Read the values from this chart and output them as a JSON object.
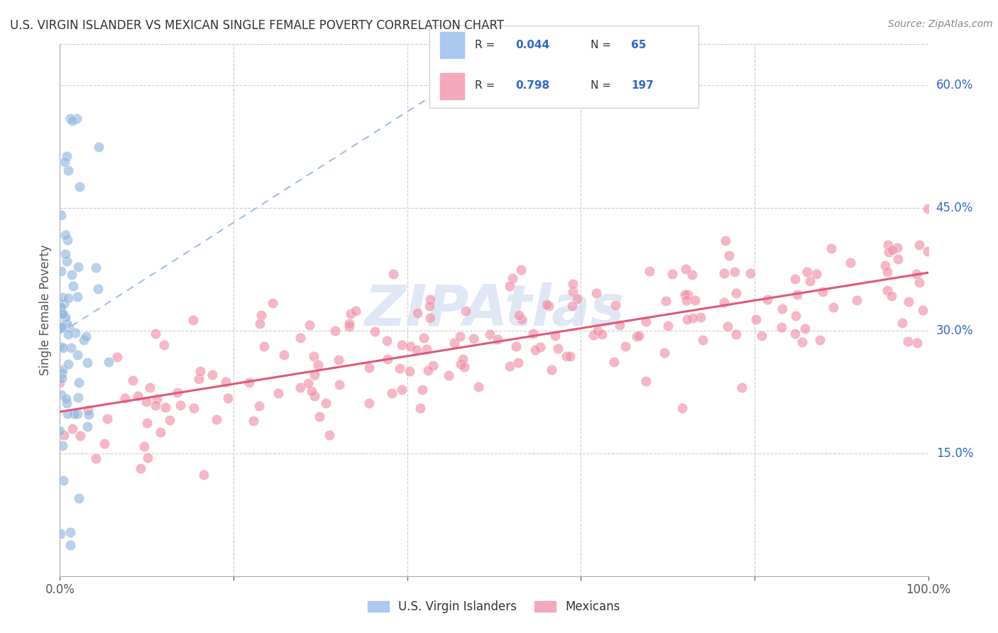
{
  "title": "U.S. VIRGIN ISLANDER VS MEXICAN SINGLE FEMALE POVERTY CORRELATION CHART",
  "source": "Source: ZipAtlas.com",
  "ylabel": "Single Female Poverty",
  "xlim": [
    0,
    1.0
  ],
  "ylim": [
    0,
    0.65
  ],
  "xtick_positions": [
    0.0,
    0.2,
    0.4,
    0.6,
    0.8,
    1.0
  ],
  "xtick_labels": [
    "0.0%",
    "",
    "",
    "",
    "",
    "100.0%"
  ],
  "ytick_positions": [
    0.15,
    0.3,
    0.45,
    0.6
  ],
  "ytick_labels": [
    "15.0%",
    "30.0%",
    "45.0%",
    "60.0%"
  ],
  "R_virgin": 0.044,
  "N_virgin": 65,
  "R_mexican": 0.798,
  "N_mexican": 197,
  "virgin_scatter_color": "#94b8e0",
  "mexican_scatter_color": "#f090a8",
  "virgin_line_color": "#a0c0e0",
  "mexican_line_color": "#e05878",
  "virgin_legend_color": "#aac8f0",
  "mexican_legend_color": "#f4a8bc",
  "background_color": "#ffffff",
  "grid_color": "#cccccc",
  "title_color": "#333333",
  "axis_label_color": "#555555",
  "ytick_color": "#3366cc",
  "source_color": "#888888",
  "legend_text_color": "#333333",
  "legend_value_color": "#3366cc",
  "watermark_text": "ZIPAtlas",
  "watermark_color": "#ccd8ee"
}
